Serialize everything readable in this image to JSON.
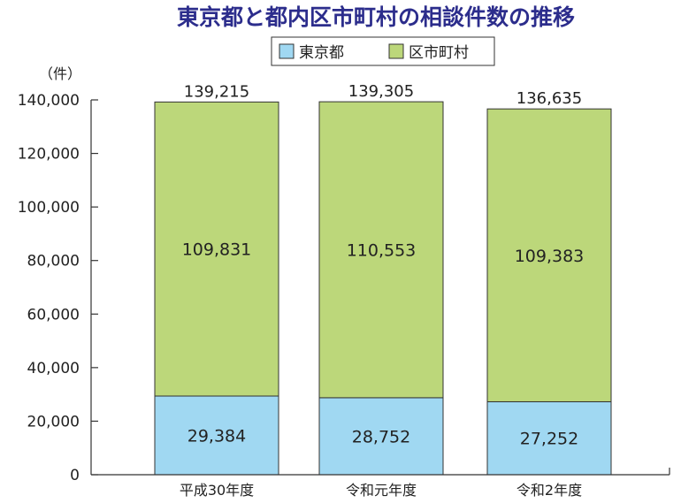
{
  "chart_data": {
    "type": "bar",
    "stacked": true,
    "title": "東京都と都内区市町村の相談件数の推移",
    "unit_label": "（件）",
    "categories": [
      "平成30年度",
      "令和元年度",
      "令和2年度"
    ],
    "series": [
      {
        "name": "東京都",
        "values": [
          29384,
          28752,
          27252
        ],
        "labels": [
          "29,384",
          "28,752",
          "27,252"
        ],
        "color": "#a0d8f2"
      },
      {
        "name": "区市町村",
        "values": [
          109831,
          110553,
          109383
        ],
        "labels": [
          "109,831",
          "110,553",
          "109,383"
        ],
        "color": "#bcd77a"
      }
    ],
    "totals": [
      139215,
      139305,
      136635
    ],
    "total_labels": [
      "139,215",
      "139,305",
      "136,635"
    ],
    "yticks": [
      0,
      20000,
      40000,
      60000,
      80000,
      100000,
      120000,
      140000
    ],
    "ytick_labels": [
      "0",
      "20,000",
      "40,000",
      "60,000",
      "80,000",
      "100,000",
      "120,000",
      "140,000"
    ],
    "ylim": [
      0,
      140000
    ],
    "legend_position": "top-center",
    "grid": false,
    "colors": {
      "title": "#2c2d8c",
      "axis": "#333333",
      "text": "#222222"
    }
  }
}
